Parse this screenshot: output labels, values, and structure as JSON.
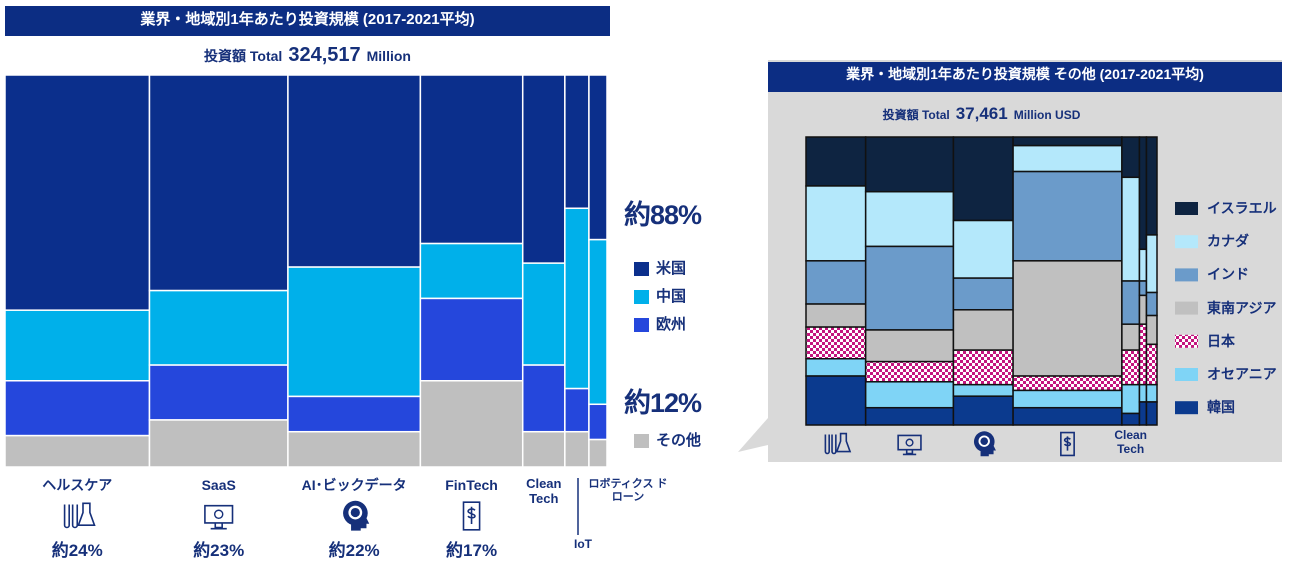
{
  "chart_data": [
    {
      "type": "mekko",
      "title": "業界・地域別1年あたり投資規模 (2017-2021平均)",
      "subtitle_prefix": "投資額 Total",
      "total": 324517,
      "total_label": "324,517",
      "subtitle_suffix": "Million",
      "categories": [
        "ヘルスケア",
        "SaaS",
        "AI･ビックデータ",
        "FinTech",
        "Clean Tech",
        "ロボティクス ドローン",
        "IoT"
      ],
      "widths": [
        24,
        23,
        22,
        17,
        7,
        4,
        3
      ],
      "width_labels": [
        "約24%",
        "約23%",
        "約22%",
        "約17%",
        null,
        null,
        null
      ],
      "xlim": [
        0,
        100
      ],
      "ylim": [
        0,
        100
      ],
      "stroke": "#ffffff",
      "series": [
        {
          "name": "米国",
          "color": "#0b2f8c",
          "values": [
            60,
            55,
            49,
            43,
            48,
            34,
            42
          ]
        },
        {
          "name": "中国",
          "color": "#00b0ea",
          "values": [
            18,
            19,
            33,
            14,
            26,
            46,
            42
          ]
        },
        {
          "name": "欧州",
          "color": "#2547dc",
          "values": [
            14,
            14,
            9,
            21,
            17,
            11,
            9
          ]
        },
        {
          "name": "その他",
          "color": "#bfbfbf",
          "values": [
            8,
            12,
            9,
            22,
            9,
            9,
            7
          ]
        }
      ],
      "annotations": [
        "約88%",
        "約12%"
      ]
    },
    {
      "type": "mekko",
      "title": "業界・地域別1年あたり投資規模 その他 (2017-2021平均)",
      "subtitle_prefix": "投資額 Total",
      "total": 37461,
      "total_label": "37,461",
      "subtitle_suffix": "Million USD",
      "categories": [
        null,
        null,
        null,
        null,
        "Clean Tech",
        null,
        null
      ],
      "widths": [
        17,
        25,
        17,
        31,
        5,
        2,
        3
      ],
      "xlim": [
        0,
        100
      ],
      "ylim": [
        0,
        100
      ],
      "stroke": "#111111",
      "series": [
        {
          "name": "イスラエル",
          "color": "#0e2441",
          "values": [
            17,
            19,
            29,
            3,
            14,
            39,
            34
          ]
        },
        {
          "name": "カナダ",
          "color": "#b4e8fb",
          "values": [
            26,
            19,
            20,
            9,
            36,
            11,
            20
          ]
        },
        {
          "name": "インド",
          "color": "#6b9bca",
          "values": [
            15,
            29,
            11,
            31,
            15,
            5,
            8
          ]
        },
        {
          "name": "東南アジア",
          "color": "#c0c0c0",
          "values": [
            8,
            11,
            14,
            40,
            9,
            10,
            10
          ]
        },
        {
          "name": "日本",
          "color": "#c4157e",
          "pattern": "checker",
          "values": [
            11,
            7,
            12,
            5,
            12,
            21,
            14
          ]
        },
        {
          "name": "オセアニア",
          "color": "#7fd4f6",
          "values": [
            6,
            9,
            4,
            6,
            10,
            6,
            6
          ]
        },
        {
          "name": "韓国",
          "color": "#0b3a8e",
          "values": [
            17,
            6,
            10,
            6,
            4,
            8,
            8
          ]
        }
      ]
    }
  ]
}
